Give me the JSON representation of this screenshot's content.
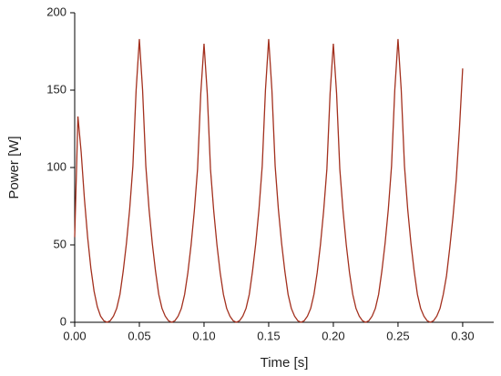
{
  "chart_data": {
    "type": "line",
    "xlabel": "Time [s]",
    "ylabel": "Power [W]",
    "x": [
      0,
      0.0025,
      0.005,
      0.0075,
      0.01,
      0.0125,
      0.015,
      0.0175,
      0.02,
      0.0225,
      0.025,
      0.0275,
      0.03,
      0.0325,
      0.035,
      0.0375,
      0.04,
      0.0425,
      0.045,
      0.0475,
      0.05,
      0.0525,
      0.055,
      0.0575,
      0.06,
      0.0625,
      0.065,
      0.0675,
      0.07,
      0.0725,
      0.075,
      0.0775,
      0.08,
      0.0825,
      0.085,
      0.0875,
      0.09,
      0.0925,
      0.095,
      0.0975,
      0.1,
      0.1025,
      0.105,
      0.1075,
      0.11,
      0.1125,
      0.115,
      0.1175,
      0.12,
      0.1225,
      0.125,
      0.1275,
      0.13,
      0.1325,
      0.135,
      0.1375,
      0.14,
      0.1425,
      0.145,
      0.1475,
      0.15,
      0.1525,
      0.155,
      0.1575,
      0.16,
      0.1625,
      0.165,
      0.1675,
      0.17,
      0.1725,
      0.175,
      0.1775,
      0.18,
      0.1825,
      0.185,
      0.1875,
      0.19,
      0.1925,
      0.195,
      0.1975,
      0.2,
      0.2025,
      0.205,
      0.2075,
      0.21,
      0.2125,
      0.215,
      0.2175,
      0.22,
      0.2225,
      0.225,
      0.2275,
      0.23,
      0.2325,
      0.235,
      0.2375,
      0.24,
      0.2425,
      0.245,
      0.2475,
      0.25,
      0.2525,
      0.255,
      0.2575,
      0.26,
      0.2625,
      0.265,
      0.2675,
      0.27,
      0.2725,
      0.275,
      0.2775,
      0.28,
      0.2825,
      0.285,
      0.2875,
      0.29,
      0.2925,
      0.295,
      0.2975,
      0.3
    ],
    "series": [
      {
        "name": "Power",
        "color": "#a3301e",
        "values": [
          55,
          133,
          110,
          80,
          55,
          35,
          20,
          10,
          4,
          1,
          0,
          1,
          4,
          9,
          18,
          33,
          51,
          73,
          101,
          150,
          183,
          150,
          101,
          73,
          51,
          33,
          18,
          9,
          4,
          1,
          0,
          1,
          4,
          9,
          18,
          32,
          50,
          72,
          99,
          148,
          180,
          148,
          99,
          72,
          50,
          32,
          18,
          9,
          4,
          1,
          0,
          1,
          4,
          9,
          18,
          33,
          51,
          73,
          101,
          150,
          183,
          150,
          101,
          73,
          51,
          33,
          18,
          9,
          4,
          1,
          0,
          1,
          4,
          9,
          18,
          32,
          50,
          72,
          99,
          148,
          180,
          148,
          99,
          72,
          50,
          32,
          18,
          9,
          4,
          1,
          0,
          1,
          4,
          9,
          18,
          33,
          51,
          73,
          101,
          150,
          183,
          150,
          101,
          73,
          51,
          33,
          18,
          9,
          4,
          1,
          0,
          1,
          4,
          9,
          18,
          30,
          48,
          68,
          92,
          125,
          164
        ]
      }
    ],
    "xlim": [
      0,
      0.324
    ],
    "ylim": [
      0,
      200
    ],
    "xticks": [
      {
        "value": 0,
        "label": "0.00"
      },
      {
        "value": 0.05,
        "label": "0.05"
      },
      {
        "value": 0.1,
        "label": "0.10"
      },
      {
        "value": 0.15,
        "label": "0.15"
      },
      {
        "value": 0.2,
        "label": "0.20"
      },
      {
        "value": 0.25,
        "label": "0.25"
      },
      {
        "value": 0.3,
        "label": "0.30"
      }
    ],
    "yticks": [
      0,
      50,
      100,
      150,
      200
    ]
  }
}
